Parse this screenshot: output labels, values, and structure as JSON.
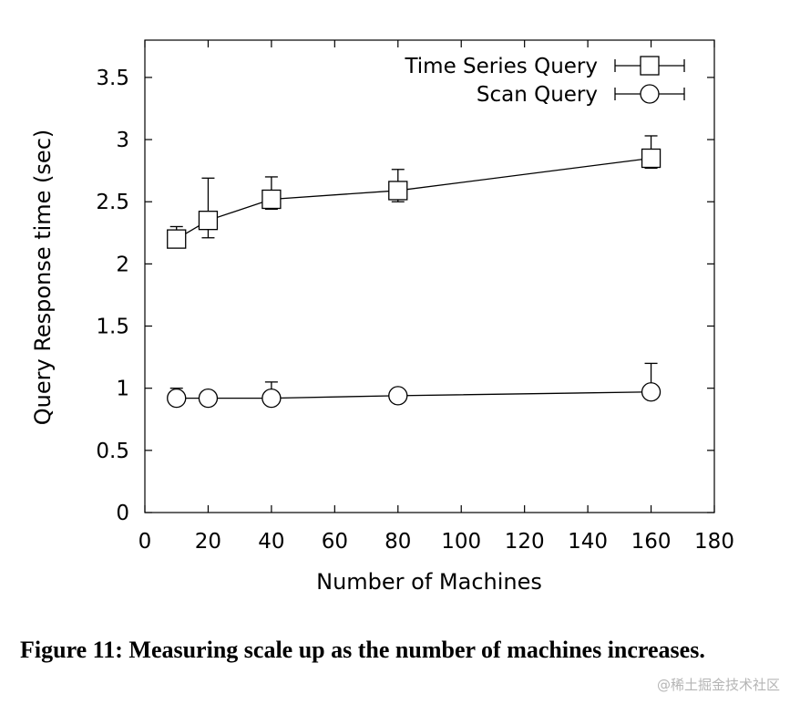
{
  "chart_data": {
    "type": "line",
    "title": "",
    "xlabel": "Number of Machines",
    "ylabel": "Query Response time (sec)",
    "xlim": [
      0,
      180
    ],
    "ylim": [
      0,
      3.8
    ],
    "xticks": [
      "0",
      "20",
      "40",
      "60",
      "80",
      "100",
      "120",
      "140",
      "160",
      "180"
    ],
    "yticks": [
      "0",
      "0.5",
      "1",
      "1.5",
      "2",
      "2.5",
      "3",
      "3.5"
    ],
    "grid": false,
    "legend_position": "top-right",
    "series": [
      {
        "name": "Time Series Query",
        "marker": "square",
        "points": [
          {
            "x": 10,
            "y": 2.2,
            "ylow": 2.15,
            "yhigh": 2.3
          },
          {
            "x": 20,
            "y": 2.35,
            "ylow": 2.21,
            "yhigh": 2.69
          },
          {
            "x": 40,
            "y": 2.52,
            "ylow": 2.44,
            "yhigh": 2.7
          },
          {
            "x": 80,
            "y": 2.59,
            "ylow": 2.5,
            "yhigh": 2.76
          },
          {
            "x": 160,
            "y": 2.85,
            "ylow": 2.77,
            "yhigh": 3.03
          }
        ]
      },
      {
        "name": "Scan Query",
        "marker": "circle",
        "points": [
          {
            "x": 10,
            "y": 0.92,
            "ylow": 0.87,
            "yhigh": 1.0
          },
          {
            "x": 20,
            "y": 0.92,
            "ylow": 0.9,
            "yhigh": 0.94
          },
          {
            "x": 40,
            "y": 0.92,
            "ylow": 0.9,
            "yhigh": 1.05
          },
          {
            "x": 80,
            "y": 0.94,
            "ylow": 0.9,
            "yhigh": 0.98
          },
          {
            "x": 160,
            "y": 0.97,
            "ylow": 0.92,
            "yhigh": 1.2
          }
        ]
      }
    ]
  },
  "caption": "Figure 11: Measuring scale up as the number of machines increases.",
  "watermark": "@稀土掘金技术社区"
}
